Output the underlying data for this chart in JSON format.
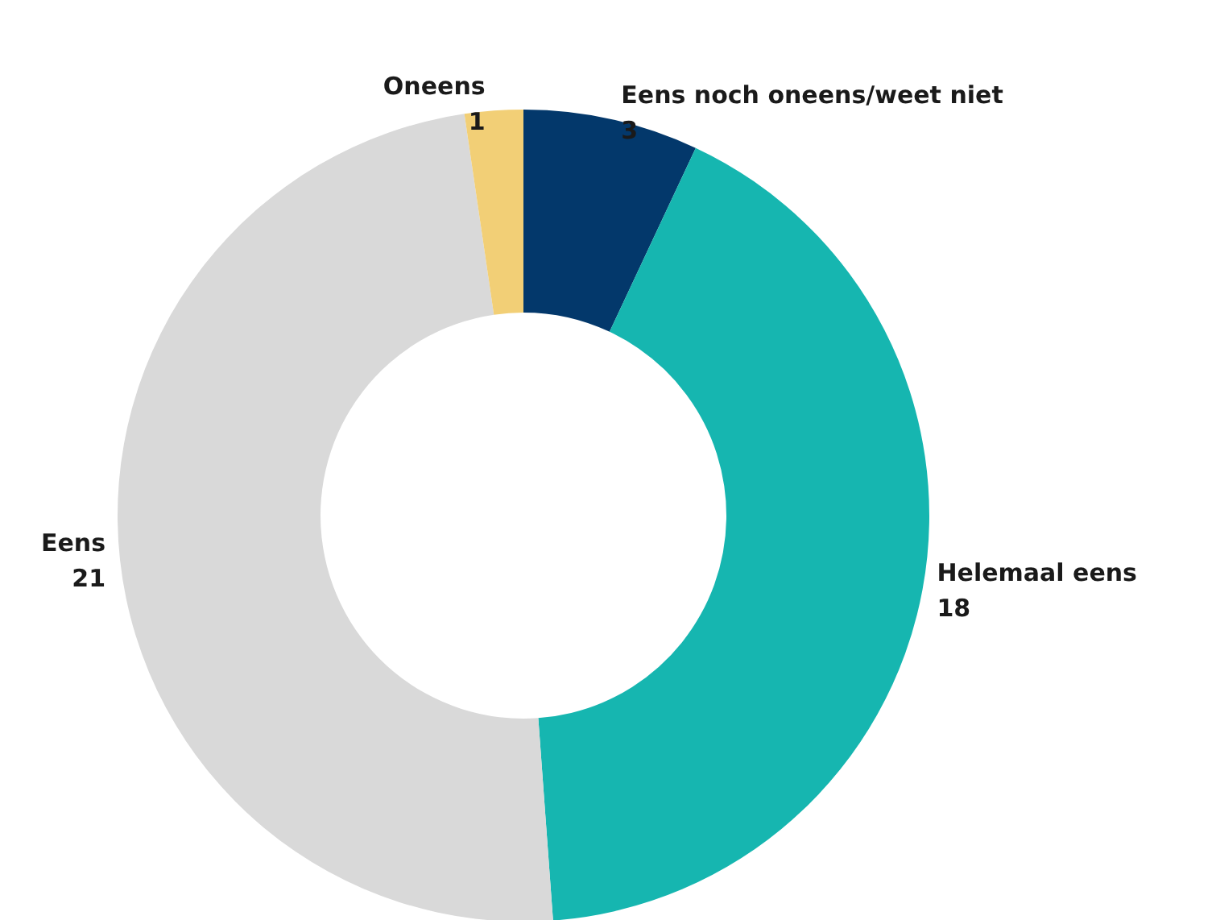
{
  "chart_data": {
    "type": "donut",
    "categories": [
      "Eens noch oneens/weet niet",
      "Helemaal eens",
      "Eens",
      "Oneens"
    ],
    "values": [
      3,
      18,
      21,
      1
    ],
    "colors": [
      "#03386b",
      "#16b6b0",
      "#d9d9d9",
      "#f2cf76"
    ],
    "data_labels": true
  }
}
